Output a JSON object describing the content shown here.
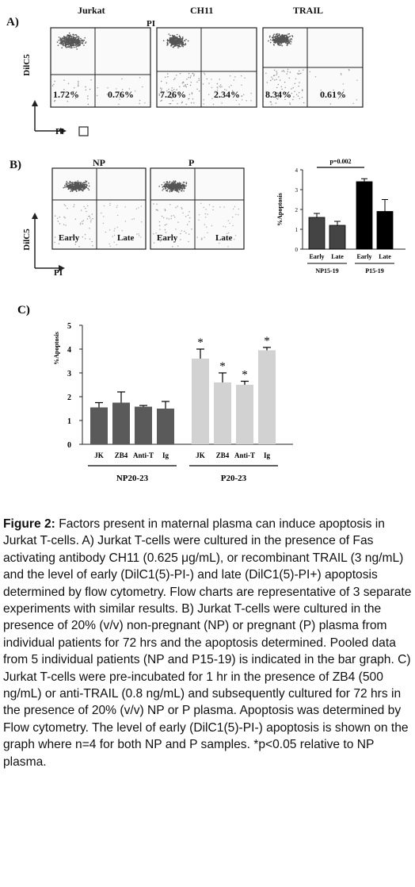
{
  "panel_a": {
    "letter": "A)",
    "titles": [
      "Jurkat",
      "CH11",
      "TRAIL"
    ],
    "pi_top_label": "PI",
    "y_axis_label": "DilC5",
    "x_axis_label": "PI",
    "percent_left": [
      "1.72%",
      "7.26%",
      "8.34%"
    ],
    "percent_right": [
      "0.76%",
      "2.34%",
      "0.61%"
    ]
  },
  "panel_b": {
    "letter": "B)",
    "titles": [
      "NP",
      "P"
    ],
    "y_axis_label": "DilC5",
    "x_axis_label": "PI",
    "quad_left": "Early",
    "quad_right": "Late"
  },
  "chart_data": [
    {
      "type": "bar",
      "title": "",
      "ylabel": "%Apoptosis",
      "ylim": [
        0,
        4
      ],
      "yticks": [
        "0",
        "1",
        "2",
        "3",
        "4"
      ],
      "categories": [
        "Early",
        "Late",
        "Early",
        "Late"
      ],
      "groups": [
        "NP15-19",
        "P15-19"
      ],
      "values": [
        1.6,
        1.2,
        3.4,
        1.9
      ],
      "errors": [
        0.2,
        0.2,
        0.15,
        0.6
      ],
      "bar_colors": [
        "#444444",
        "#444444",
        "#000000",
        "#000000"
      ],
      "annotation": "p=0.002"
    },
    {
      "type": "bar",
      "title": "",
      "letter": "C)",
      "ylabel": "%Apoptosis",
      "ylim": [
        0,
        5
      ],
      "yticks": [
        "0",
        "1",
        "2",
        "3",
        "4",
        "5"
      ],
      "categories": [
        "JK",
        "ZB4",
        "Anti-T",
        "Ig",
        "JK",
        "ZB4",
        "Anti-T",
        "Ig"
      ],
      "groups": [
        "NP20-23",
        "P20-23"
      ],
      "values": [
        1.55,
        1.75,
        1.58,
        1.5,
        3.6,
        2.6,
        2.5,
        3.95
      ],
      "errors": [
        0.2,
        0.45,
        0.05,
        0.3,
        0.4,
        0.4,
        0.15,
        0.12
      ],
      "significance": [
        "",
        "",
        "",
        "",
        "*",
        "*",
        "*",
        "*"
      ],
      "bar_colors": [
        "#5a5a5a",
        "#5a5a5a",
        "#5a5a5a",
        "#5a5a5a",
        "#d2d2d2",
        "#d2d2d2",
        "#d2d2d2",
        "#d2d2d2"
      ]
    }
  ],
  "caption": {
    "label": "Figure 2:",
    "text": " Factors present in maternal plasma can induce apoptosis in Jurkat T-cells. A) Jurkat T-cells were cultured in the presence of Fas activating antibody CH11 (0.625 μg/mL), or recombinant TRAIL (3 ng/mL) and the level of early (DilC1(5)-PI-) and late (DilC1(5)-PI+) apoptosis determined by flow cytometry. Flow charts are representative of 3 separate experiments with similar results. B) Jurkat T-cells were cultured in the presence of 20% (v/v) non-pregnant (NP) or pregnant (P) plasma from individual patients for 72 hrs and the apoptosis determined. Pooled data from 5 individual patients (NP and P15-19) is indicated in the bar graph. C) Jurkat T-cells were pre-incubated for 1 hr in the presence of ZB4 (500 ng/mL) or anti-TRAIL (0.8 ng/mL) and subsequently cultured for 72 hrs in the presence of 20% (v/v) NP or P plasma. Apoptosis was determined by Flow cytometry. The level of early (DilC1(5)-PI-) apoptosis is shown on the graph where n=4 for both NP and P samples. *p<0.05 relative to NP plasma."
  }
}
